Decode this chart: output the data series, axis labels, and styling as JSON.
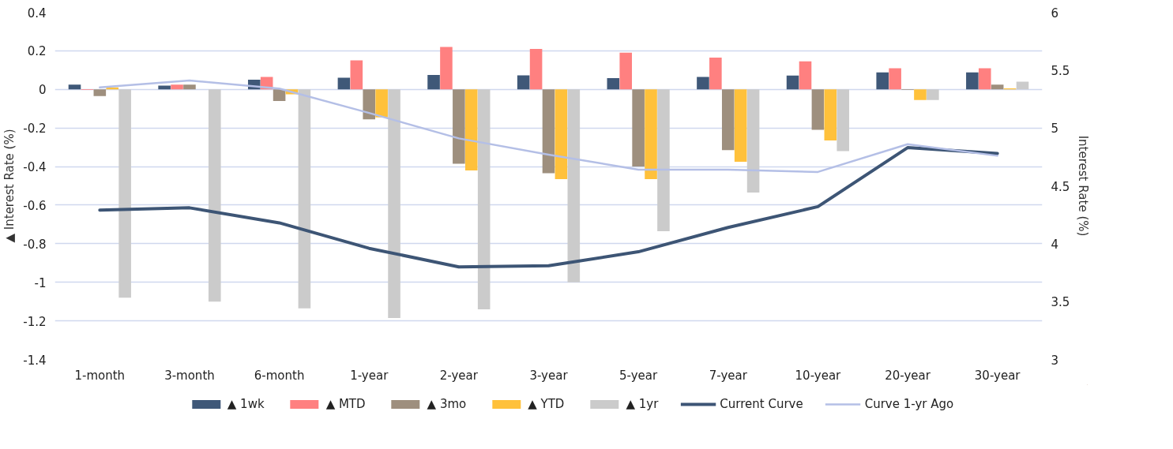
{
  "chart_data": {
    "type": "bar",
    "categories": [
      "1-month",
      "3-month",
      "6-month",
      "1-year",
      "2-year",
      "3-year",
      "5-year",
      "7-year",
      "10-year",
      "20-year",
      "30-year"
    ],
    "ylabel": "▲ Interest Rate (%)",
    "y2label": "Interest Rate (%)",
    "ylim": [
      -1.4,
      0.4
    ],
    "yticks": [
      -1.4,
      -1.2,
      -1,
      -0.8,
      -0.6,
      -0.4,
      -0.2,
      0,
      0.2,
      0.4
    ],
    "y2lim": [
      3,
      6
    ],
    "y2ticks": [
      3,
      3.5,
      4,
      4.5,
      5,
      5.5,
      6
    ],
    "grid": "y",
    "legend": "bottom",
    "line_style": "solid",
    "marker": "none",
    "series": [
      {
        "name": "▲ 1wk",
        "color": "#3f5878",
        "values": [
          0.025,
          0.02,
          0.05,
          0.06,
          0.075,
          0.073,
          0.058,
          0.065,
          0.072,
          0.088,
          0.088
        ]
      },
      {
        "name": "▲ MTD",
        "color": "#ff8080",
        "values": [
          -0.003,
          0.025,
          0.065,
          0.15,
          0.22,
          0.21,
          0.19,
          0.165,
          0.145,
          0.11,
          0.11
        ]
      },
      {
        "name": "▲ 3mo",
        "color": "#9e8f7e",
        "values": [
          -0.035,
          0.025,
          -0.06,
          -0.155,
          -0.385,
          -0.435,
          -0.4,
          -0.315,
          -0.21,
          -0.003,
          0.025
        ]
      },
      {
        "name": "▲ YTD",
        "color": "#ffc13b",
        "values": [
          0.01,
          0,
          -0.025,
          -0.145,
          -0.42,
          -0.465,
          -0.465,
          -0.375,
          -0.265,
          -0.055,
          0.005
        ]
      },
      {
        "name": "▲ 1yr",
        "color": "#cbcbcb",
        "values": [
          -1.08,
          -1.1,
          -1.135,
          -1.185,
          -1.14,
          -1.0,
          -0.735,
          -0.535,
          -0.32,
          -0.055,
          0.04
        ]
      },
      {
        "name": "Current Curve",
        "type": "line",
        "axis": "y2",
        "color": "#3d5575",
        "values": [
          4.29,
          4.31,
          4.18,
          3.96,
          3.8,
          3.81,
          3.93,
          4.14,
          4.32,
          4.83,
          4.78
        ]
      },
      {
        "name": "Curve 1-yr Ago",
        "type": "line",
        "axis": "y2",
        "color": "#b4bfe6",
        "values": [
          5.35,
          5.41,
          5.34,
          5.13,
          4.91,
          4.77,
          4.64,
          4.64,
          4.62,
          4.86,
          4.76
        ]
      }
    ]
  }
}
